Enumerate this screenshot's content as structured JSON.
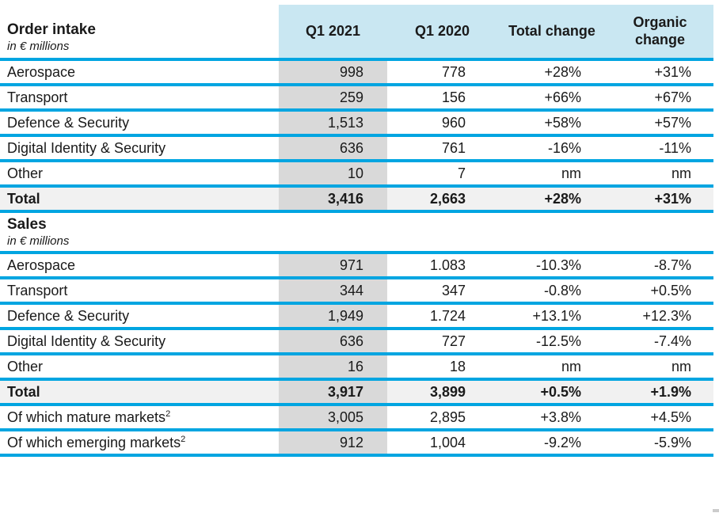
{
  "colors": {
    "line_blue": "#00a5e1",
    "header_fill": "#c9e7f2",
    "shaded_column": "#d9d9d9",
    "total_row_fill": "#f1f1f1",
    "text": "#1a1a1a"
  },
  "table": {
    "columns": [
      "Q1 2021",
      "Q1 2020",
      "Total change",
      "Organic change"
    ],
    "sections": [
      {
        "title": "Order intake",
        "subtitle": "in € millions",
        "rows": [
          {
            "label": "Aerospace",
            "values": [
              "998",
              "778",
              "+28%",
              "+31%"
            ]
          },
          {
            "label": "Transport",
            "values": [
              "259",
              "156",
              "+66%",
              "+67%"
            ]
          },
          {
            "label": "Defence & Security",
            "values": [
              "1,513",
              "960",
              "+58%",
              "+57%"
            ]
          },
          {
            "label": "Digital Identity & Security",
            "values": [
              "636",
              "761",
              "-16%",
              "-11%"
            ]
          },
          {
            "label": "Other",
            "values": [
              "10",
              "7",
              "nm",
              "nm"
            ]
          },
          {
            "label": "Total",
            "total": true,
            "values": [
              "3,416",
              "2,663",
              "+28%",
              "+31%"
            ]
          }
        ]
      },
      {
        "title": "Sales",
        "subtitle": "in € millions",
        "rows": [
          {
            "label": "Aerospace",
            "values": [
              "971",
              "1.083",
              "-10.3%",
              "-8.7%"
            ]
          },
          {
            "label": "Transport",
            "values": [
              "344",
              "347",
              "-0.8%",
              "+0.5%"
            ]
          },
          {
            "label": "Defence & Security",
            "values": [
              "1,949",
              "1.724",
              "+13.1%",
              "+12.3%"
            ]
          },
          {
            "label": "Digital Identity & Security",
            "values": [
              "636",
              "727",
              "-12.5%",
              "-7.4%"
            ]
          },
          {
            "label": "Other",
            "values": [
              "16",
              "18",
              "nm",
              "nm"
            ]
          },
          {
            "label": "Total",
            "total": true,
            "values": [
              "3,917",
              "3,899",
              "+0.5%",
              "+1.9%"
            ]
          },
          {
            "label": "Of which mature markets",
            "sup": "2",
            "values": [
              "3,005",
              "2,895",
              "+3.8%",
              "+4.5%"
            ]
          },
          {
            "label": "Of which emerging markets",
            "sup": "2",
            "values": [
              "912",
              "1,004",
              "-9.2%",
              "-5.9%"
            ]
          }
        ]
      }
    ]
  }
}
